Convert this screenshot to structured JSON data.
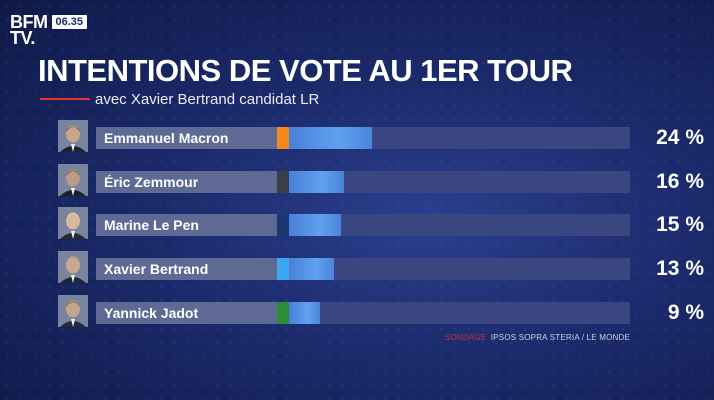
{
  "channel": {
    "logo_text": "BFM\nTV.",
    "time": "06.35"
  },
  "title": "INTENTIONS DE VOTE AU 1ER TOUR",
  "subtitle": "avec Xavier Bertrand candidat LR",
  "source": {
    "label": "SONDAGE",
    "text": "IPSOS SOPRA STERIA / LE MONDE"
  },
  "colors": {
    "accent": "#e8322a",
    "bar": "#5a98e8",
    "track": "#3a4680"
  },
  "chart_data": {
    "type": "bar",
    "orientation": "horizontal",
    "title": "INTENTIONS DE VOTE AU 1ER TOUR",
    "subtitle": "avec Xavier Bertrand candidat LR",
    "categories": [
      "Emmanuel Macron",
      "Éric Zemmour",
      "Marine Le Pen",
      "Xavier Bertrand",
      "Yannick Jadot"
    ],
    "values": [
      24,
      16,
      15,
      13,
      9
    ],
    "value_labels": [
      "24 %",
      "16 %",
      "15 %",
      "13 %",
      "9 %"
    ],
    "party_colors": [
      "#f08a1a",
      "#3b3f4a",
      "#1d3570",
      "#3fa7f0",
      "#2e8b3a"
    ],
    "xlim": [
      0,
      100
    ],
    "unit": "%",
    "grid": false,
    "legend": "none"
  },
  "candidates": [
    {
      "name": "Emmanuel Macron",
      "pct_label": "24 %",
      "avatar_icon": "portrait-icon"
    },
    {
      "name": "Éric Zemmour",
      "pct_label": "16 %",
      "avatar_icon": "portrait-icon"
    },
    {
      "name": "Marine Le Pen",
      "pct_label": "15 %",
      "avatar_icon": "portrait-icon"
    },
    {
      "name": "Xavier Bertrand",
      "pct_label": "13 %",
      "avatar_icon": "portrait-icon"
    },
    {
      "name": "Yannick Jadot",
      "pct_label": "9 %",
      "avatar_icon": "portrait-icon"
    }
  ]
}
